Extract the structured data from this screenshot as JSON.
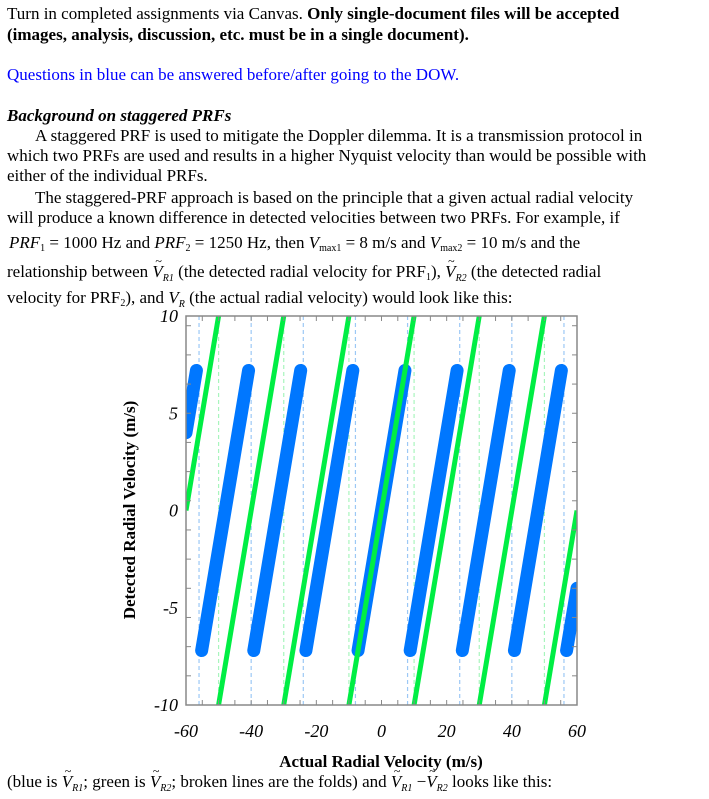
{
  "intro": {
    "line1_normal": "Turn in completed assignments via Canvas.  ",
    "line1_bold": "Only single-document files will be accepted",
    "line2_bold": "(images, analysis, discussion, etc. must be in a single document).",
    "blue_note": "Questions in blue can be answered before/after going to the DOW."
  },
  "background": {
    "heading": "Background on staggered PRFs",
    "p1_l1": "A staggered PRF is used to mitigate the Doppler dilemma.  It is a transmission protocol in",
    "p1_l2": "which two PRFs are used and results in a higher Nyquist velocity than would be possible with",
    "p1_l3": "either of the individual PRFs.",
    "p2_l1": "The staggered-PRF approach is based on the principle that a given actual radial velocity",
    "p2_l2": "will produce a known difference in detected velocities between two PRFs.  For example, if",
    "p2_l3": {
      "prf1_sym": "PRF",
      "prf1_sub": "1",
      "prf1_val": " = 1000 Hz",
      "and1": " and ",
      "prf2_sym": "PRF",
      "prf2_sub": "2",
      "prf2_val": " = 1250 Hz",
      "then": ", then ",
      "v1_sym": "V",
      "v1_sub": "max1",
      "v1_val": " = 8 m/s",
      "and2": " and ",
      "v2_sym": "V",
      "v2_sub": "max2",
      "v2_val": " = 10 m/s",
      "tail": " and the"
    },
    "p2_l4": {
      "a": "relationship between ",
      "vr1_sym": "V",
      "vr1_sub": "R1",
      "b": " (the detected radial velocity for PRF",
      "b_sub": "1",
      "c": "), ",
      "vr2_sym": "V",
      "vr2_sub": "R2",
      "d": " (the detected radial"
    },
    "p2_l5": {
      "a": "velocity for PRF",
      "a_sub": "2",
      "b": "), and ",
      "vr_sym": "V",
      "vr_sub": "R",
      "c": " (the actual radial velocity) would look like this:"
    }
  },
  "caption": {
    "a": "(blue is ",
    "v1_sym": "V",
    "v1_sub": "R1",
    "b": "; green is ",
    "v2_sym": "V",
    "v2_sub": "R2",
    "c": "; broken lines are the folds) and ",
    "d1_sym": "V",
    "d1_sub": "R1",
    "minus": " −",
    "d2_sym": "V",
    "d2_sub": "R2",
    "e": " looks like this:"
  },
  "chart_data": {
    "type": "line",
    "title": "",
    "xlabel": "Actual Radial Velocity (m/s)",
    "ylabel": "Detected Radial Velocity (m/s)",
    "xlim": [
      -60,
      60
    ],
    "ylim": [
      -10,
      10
    ],
    "xticks": [
      -60,
      -40,
      -20,
      0,
      20,
      40,
      60
    ],
    "yticks": [
      10,
      5,
      0,
      -5,
      -10
    ],
    "x_minor_step": 5,
    "y_minor_step": 1.5,
    "series": [
      {
        "name": "V_R1 (PRF1, Vmax1 = 8 m/s)",
        "color": "#0077ff",
        "vmax": 8,
        "folds": [
          -56,
          -40,
          -24,
          -8,
          8,
          24,
          40,
          56
        ]
      },
      {
        "name": "V_R2 (PRF2, Vmax2 = 10 m/s)",
        "color": "#00ee44",
        "vmax": 10,
        "folds": [
          -50,
          -30,
          -10,
          10,
          30,
          50
        ]
      }
    ]
  }
}
